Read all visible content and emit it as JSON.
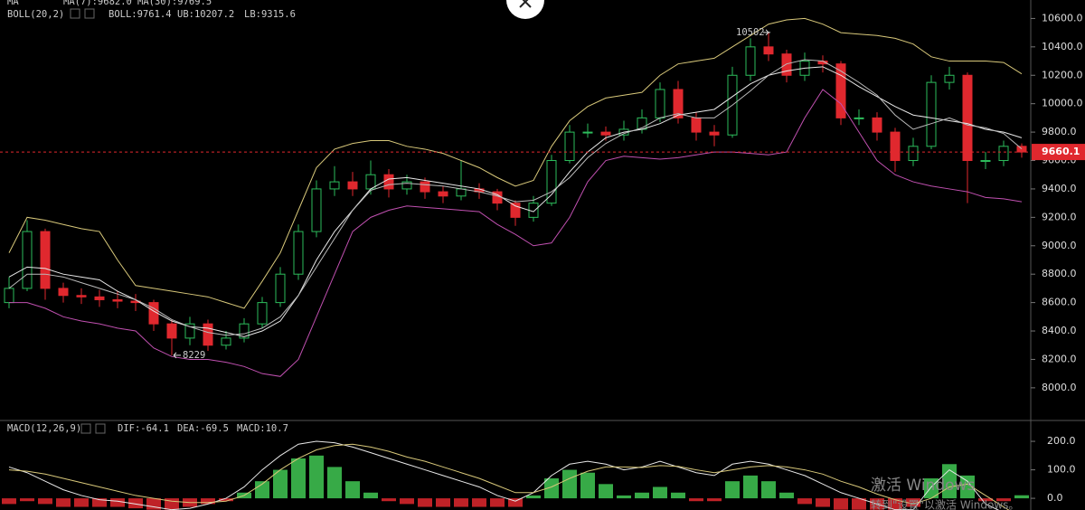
{
  "chart_data": [
    {
      "type": "candlestick",
      "ylim": [
        7770,
        10730
      ],
      "yticks": [
        {
          "value": 8000,
          "label": "8000.0"
        },
        {
          "value": 8200,
          "label": "8200.0"
        },
        {
          "value": 8400,
          "label": "8400.0"
        },
        {
          "value": 8600,
          "label": "8600.0"
        },
        {
          "value": 8800,
          "label": "8800.0"
        },
        {
          "value": 9000,
          "label": "9000.0"
        },
        {
          "value": 9200,
          "label": "9200.0"
        },
        {
          "value": 9400,
          "label": "9400.0"
        },
        {
          "value": 9600,
          "label": "9600.0"
        },
        {
          "value": 9800,
          "label": "9800.0"
        },
        {
          "value": 10000,
          "label": "10000.0"
        },
        {
          "value": 10200,
          "label": "10200.0"
        },
        {
          "value": 10400,
          "label": "10400.0"
        },
        {
          "value": 10600,
          "label": "10600.0"
        }
      ],
      "up_color": "#2dbd5c",
      "down_color": "#e0282e",
      "indicators": [
        {
          "text": "MA",
          "color": "#cccccc"
        },
        {
          "text": "MA(7):9682.0",
          "color": "#e8e8e8"
        },
        {
          "text": "MA(30):9769.5",
          "color": "#d8c87a"
        },
        {
          "text": "BOLL(20,2)",
          "color": "#cccccc"
        },
        {
          "text": "BOLL:9761.4",
          "color": "#e8e8e8"
        },
        {
          "text": "UB:10207.2",
          "color": "#d8c87a"
        },
        {
          "text": "LB:9315.6",
          "color": "#c050b0"
        }
      ],
      "max_label": "10502",
      "min_label": "8229",
      "last_price": 9660.1,
      "open": [
        8600,
        8700,
        9100,
        8700,
        8650,
        8640,
        8620,
        8610,
        8600,
        8450,
        8350,
        8450,
        8300,
        8350,
        8450,
        8600,
        8800,
        9100,
        9400,
        9450,
        9400,
        9500,
        9400,
        9450,
        9380,
        9350,
        9400,
        9380,
        9300,
        9200,
        9300,
        9600,
        9800,
        9800,
        9780,
        9820,
        9900,
        10100,
        9900,
        9800,
        9780,
        10200,
        10400,
        10350,
        10200,
        10300,
        10280,
        9900,
        9900,
        9800,
        9600,
        9700,
        10150,
        10200,
        9600,
        9600,
        9700
      ],
      "high": [
        8780,
        9180,
        9120,
        8740,
        8700,
        8690,
        8680,
        8660,
        8620,
        8480,
        8500,
        8480,
        8400,
        8490,
        8640,
        8850,
        9150,
        9460,
        9560,
        9520,
        9600,
        9540,
        9500,
        9480,
        9420,
        9600,
        9440,
        9400,
        9320,
        9350,
        9640,
        9850,
        9860,
        9840,
        9880,
        9960,
        10150,
        10160,
        9940,
        9850,
        10260,
        10460,
        10502,
        10380,
        10360,
        10340,
        10300,
        9960,
        9940,
        9830,
        9760,
        10200,
        10260,
        10220,
        9660,
        9740,
        9720
      ],
      "low": [
        8560,
        8680,
        8620,
        8600,
        8590,
        8570,
        8560,
        8540,
        8400,
        8229,
        8300,
        8260,
        8270,
        8320,
        8420,
        8570,
        8760,
        9060,
        9350,
        9350,
        9360,
        9340,
        9360,
        9330,
        9300,
        9320,
        9330,
        9250,
        9140,
        9170,
        9280,
        9580,
        9760,
        9740,
        9740,
        9790,
        9870,
        9860,
        9740,
        9700,
        9760,
        10160,
        10300,
        10150,
        10160,
        10220,
        9850,
        9850,
        9740,
        9520,
        9560,
        9680,
        10100,
        9300,
        9540,
        9560,
        9620
      ],
      "close": [
        8700,
        9100,
        8700,
        8650,
        8640,
        8620,
        8610,
        8600,
        8450,
        8350,
        8450,
        8300,
        8350,
        8450,
        8600,
        8800,
        9100,
        9400,
        9450,
        9400,
        9500,
        9400,
        9450,
        9380,
        9350,
        9400,
        9380,
        9300,
        9200,
        9300,
        9600,
        9800,
        9800,
        9780,
        9820,
        9900,
        10100,
        9900,
        9800,
        9780,
        10200,
        10400,
        10350,
        10200,
        10300,
        10280,
        9900,
        9900,
        9800,
        9600,
        9700,
        10150,
        10200,
        9600,
        9600,
        9700,
        9660
      ],
      "lines": [
        {
          "color": "#d8c87a",
          "values": [
            8950,
            9200,
            9180,
            9150,
            9120,
            9100,
            8900,
            8720,
            8700,
            8680,
            8660,
            8640,
            8600,
            8560,
            8750,
            8950,
            9250,
            9550,
            9680,
            9720,
            9740,
            9740,
            9700,
            9680,
            9650,
            9600,
            9550,
            9480,
            9420,
            9460,
            9700,
            9880,
            9980,
            10040,
            10060,
            10080,
            10200,
            10280,
            10300,
            10320,
            10400,
            10480,
            10560,
            10590,
            10600,
            10560,
            10500,
            10490,
            10480,
            10460,
            10420,
            10330,
            10300,
            10300,
            10300,
            10290,
            10210
          ]
        },
        {
          "color": "#e8e8e8",
          "values": [
            8780,
            8850,
            8840,
            8800,
            8780,
            8760,
            8680,
            8620,
            8540,
            8470,
            8430,
            8420,
            8390,
            8360,
            8400,
            8470,
            8650,
            8900,
            9100,
            9250,
            9400,
            9470,
            9480,
            9460,
            9440,
            9420,
            9400,
            9360,
            9280,
            9240,
            9360,
            9520,
            9660,
            9760,
            9800,
            9820,
            9860,
            9920,
            9940,
            9960,
            10050,
            10140,
            10200,
            10230,
            10250,
            10260,
            10200,
            10120,
            10050,
            9980,
            9920,
            9900,
            9880,
            9860,
            9820,
            9800,
            9760
          ]
        },
        {
          "color": "#c050b0",
          "values": [
            8600,
            8600,
            8560,
            8500,
            8470,
            8450,
            8420,
            8400,
            8280,
            8220,
            8200,
            8200,
            8180,
            8150,
            8100,
            8080,
            8200,
            8500,
            8800,
            9100,
            9200,
            9250,
            9280,
            9270,
            9260,
            9250,
            9240,
            9150,
            9080,
            9000,
            9020,
            9200,
            9450,
            9600,
            9630,
            9620,
            9610,
            9620,
            9640,
            9660,
            9660,
            9650,
            9640,
            9660,
            9900,
            10100,
            10000,
            9800,
            9600,
            9500,
            9450,
            9420,
            9400,
            9380,
            9340,
            9330,
            9310
          ]
        },
        {
          "color": "#bbbbbb",
          "values": [
            8700,
            8800,
            8800,
            8780,
            8740,
            8700,
            8660,
            8620,
            8560,
            8480,
            8430,
            8390,
            8370,
            8380,
            8420,
            8500,
            8650,
            8850,
            9050,
            9250,
            9390,
            9430,
            9440,
            9430,
            9420,
            9400,
            9380,
            9350,
            9310,
            9320,
            9380,
            9480,
            9620,
            9720,
            9790,
            9830,
            9900,
            9930,
            9900,
            9900,
            9990,
            10090,
            10200,
            10280,
            10310,
            10300,
            10230,
            10150,
            10060,
            9920,
            9820,
            9860,
            9900,
            9850,
            9830,
            9790,
            9682
          ]
        }
      ]
    },
    {
      "type": "macd",
      "ylim": [
        -41,
        270
      ],
      "yticks": [
        {
          "value": 0,
          "label": "0.0"
        },
        {
          "value": 100,
          "label": "100.0"
        },
        {
          "value": 200,
          "label": "200.0"
        }
      ],
      "up_color": "#3dbd4f",
      "down_color": "#e0282e",
      "indicators": [
        {
          "text": "MACD(12,26,9)",
          "color": "#cccccc"
        },
        {
          "text": "DIF:-64.1",
          "color": "#e8e8e8"
        },
        {
          "text": "DEA:-69.5",
          "color": "#d8c87a"
        },
        {
          "text": "MACD:10.7",
          "color": "#3dbd4f"
        }
      ],
      "histogram": [
        -20,
        -10,
        -20,
        -30,
        -30,
        -30,
        -30,
        -35,
        -40,
        -40,
        -30,
        -20,
        -10,
        20,
        60,
        100,
        140,
        150,
        110,
        60,
        20,
        -10,
        -20,
        -30,
        -30,
        -30,
        -30,
        -30,
        -30,
        10,
        70,
        100,
        90,
        50,
        10,
        20,
        40,
        20,
        -10,
        -10,
        60,
        80,
        60,
        20,
        -20,
        -30,
        -40,
        -40,
        -40,
        -40,
        -30,
        70,
        120,
        80,
        -10,
        -10,
        10.7
      ],
      "lines": [
        {
          "color": "#e8e8e8",
          "values": [
            110,
            90,
            60,
            30,
            10,
            -5,
            -10,
            -20,
            -30,
            -40,
            -35,
            -20,
            0,
            40,
            100,
            150,
            190,
            200,
            195,
            180,
            160,
            140,
            120,
            100,
            80,
            60,
            40,
            10,
            -10,
            20,
            80,
            120,
            130,
            120,
            100,
            110,
            130,
            110,
            90,
            80,
            120,
            130,
            120,
            100,
            80,
            50,
            20,
            0,
            -20,
            -40,
            -40,
            40,
            100,
            60,
            -20,
            -50,
            -64.1
          ]
        },
        {
          "color": "#d8c87a",
          "values": [
            100,
            95,
            85,
            70,
            55,
            40,
            25,
            10,
            0,
            -10,
            -15,
            -15,
            -10,
            10,
            50,
            100,
            140,
            170,
            185,
            190,
            180,
            165,
            145,
            130,
            110,
            90,
            70,
            45,
            20,
            20,
            40,
            70,
            95,
            110,
            110,
            108,
            115,
            112,
            100,
            90,
            100,
            110,
            115,
            110,
            100,
            85,
            60,
            40,
            15,
            -5,
            -20,
            0,
            40,
            50,
            10,
            -30,
            -69.5
          ]
        }
      ]
    }
  ],
  "watermark": {
    "title": "激活 Windows",
    "subtitle": "转到\"设置\"以激活 Windows。"
  }
}
